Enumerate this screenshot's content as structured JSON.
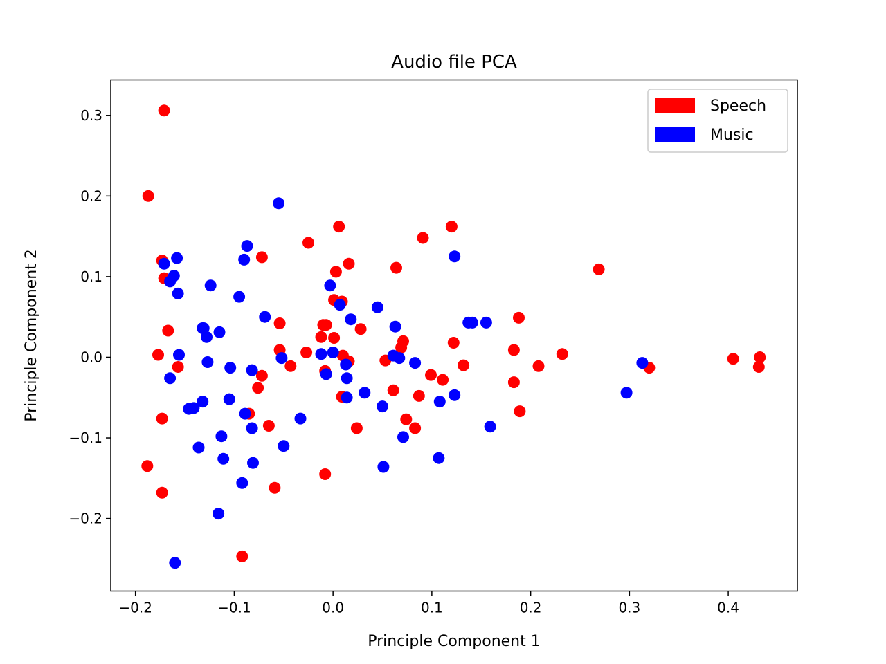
{
  "chart_data": {
    "type": "scatter",
    "title": "Audio file PCA",
    "xlabel": "Principle Component 1",
    "ylabel": "Principle Component 2",
    "xlim": [
      -0.225,
      0.47
    ],
    "ylim": [
      -0.29,
      0.344
    ],
    "xticks": [
      -0.2,
      -0.1,
      0.0,
      0.1,
      0.2,
      0.3,
      0.4
    ],
    "xtick_labels": [
      "−0.2",
      "−0.1",
      "0.0",
      "0.1",
      "0.2",
      "0.3",
      "0.4"
    ],
    "yticks": [
      -0.2,
      -0.1,
      0.0,
      0.1,
      0.2,
      0.3
    ],
    "ytick_labels": [
      "−0.2",
      "−0.1",
      "0.0",
      "0.1",
      "0.2",
      "0.3"
    ],
    "grid": false,
    "legend_position": "top-right",
    "series": [
      {
        "name": "Speech",
        "color": "#ff0000",
        "points": [
          [
            -0.171,
            0.306
          ],
          [
            -0.187,
            0.2
          ],
          [
            -0.173,
            0.12
          ],
          [
            -0.171,
            0.098
          ],
          [
            -0.167,
            0.033
          ],
          [
            -0.177,
            0.003
          ],
          [
            -0.157,
            -0.012
          ],
          [
            -0.173,
            -0.076
          ],
          [
            -0.188,
            -0.135
          ],
          [
            -0.173,
            -0.168
          ],
          [
            -0.072,
            0.124
          ],
          [
            -0.054,
            0.042
          ],
          [
            -0.054,
            0.009
          ],
          [
            -0.043,
            -0.011
          ],
          [
            -0.072,
            -0.023
          ],
          [
            -0.076,
            -0.038
          ],
          [
            -0.065,
            -0.085
          ],
          [
            -0.085,
            -0.07
          ],
          [
            -0.059,
            -0.162
          ],
          [
            -0.092,
            -0.247
          ],
          [
            -0.025,
            0.142
          ],
          [
            0.006,
            0.162
          ],
          [
            0.003,
            0.106
          ],
          [
            0.016,
            0.116
          ],
          [
            0.001,
            0.071
          ],
          [
            0.009,
            0.069
          ],
          [
            -0.01,
            0.04
          ],
          [
            -0.007,
            0.04
          ],
          [
            -0.012,
            0.025
          ],
          [
            0.001,
            0.024
          ],
          [
            0.028,
            0.035
          ],
          [
            -0.027,
            0.006
          ],
          [
            0.01,
            0.002
          ],
          [
            0.016,
            -0.005
          ],
          [
            -0.008,
            -0.017
          ],
          [
            0.009,
            -0.049
          ],
          [
            0.024,
            -0.088
          ],
          [
            -0.008,
            -0.145
          ],
          [
            0.091,
            0.148
          ],
          [
            0.064,
            0.111
          ],
          [
            0.12,
            0.162
          ],
          [
            0.071,
            0.02
          ],
          [
            0.069,
            0.012
          ],
          [
            0.053,
            -0.004
          ],
          [
            0.061,
            -0.041
          ],
          [
            0.087,
            -0.048
          ],
          [
            0.074,
            -0.077
          ],
          [
            0.083,
            -0.088
          ],
          [
            0.099,
            -0.022
          ],
          [
            0.111,
            -0.028
          ],
          [
            0.132,
            -0.01
          ],
          [
            0.122,
            0.018
          ],
          [
            0.188,
            0.049
          ],
          [
            0.183,
            0.009
          ],
          [
            0.232,
            0.004
          ],
          [
            0.208,
            -0.011
          ],
          [
            0.183,
            -0.031
          ],
          [
            0.189,
            -0.067
          ],
          [
            0.269,
            0.109
          ],
          [
            0.32,
            -0.013
          ],
          [
            0.405,
            -0.002
          ],
          [
            0.432,
            0.0
          ],
          [
            0.431,
            -0.012
          ]
        ]
      },
      {
        "name": "Music",
        "color": "#0000ff",
        "points": [
          [
            -0.171,
            0.116
          ],
          [
            -0.158,
            0.123
          ],
          [
            -0.161,
            0.101
          ],
          [
            -0.165,
            0.094
          ],
          [
            -0.157,
            0.079
          ],
          [
            -0.156,
            0.003
          ],
          [
            -0.165,
            -0.026
          ],
          [
            -0.16,
            -0.255
          ],
          [
            -0.124,
            0.089
          ],
          [
            -0.132,
            0.036
          ],
          [
            -0.131,
            0.036
          ],
          [
            -0.128,
            0.025
          ],
          [
            -0.115,
            0.031
          ],
          [
            -0.127,
            -0.006
          ],
          [
            -0.132,
            -0.055
          ],
          [
            -0.146,
            -0.064
          ],
          [
            -0.141,
            -0.063
          ],
          [
            -0.136,
            -0.112
          ],
          [
            -0.113,
            -0.098
          ],
          [
            -0.111,
            -0.126
          ],
          [
            -0.116,
            -0.194
          ],
          [
            -0.104,
            -0.013
          ],
          [
            -0.105,
            -0.052
          ],
          [
            -0.095,
            0.075
          ],
          [
            -0.087,
            0.138
          ],
          [
            -0.09,
            0.121
          ],
          [
            -0.069,
            0.05
          ],
          [
            -0.082,
            -0.016
          ],
          [
            -0.089,
            -0.07
          ],
          [
            -0.082,
            -0.088
          ],
          [
            -0.081,
            -0.131
          ],
          [
            -0.092,
            -0.156
          ],
          [
            -0.055,
            0.191
          ],
          [
            -0.052,
            -0.001
          ],
          [
            -0.05,
            -0.11
          ],
          [
            -0.033,
            -0.076
          ],
          [
            -0.003,
            0.089
          ],
          [
            0.007,
            0.065
          ],
          [
            0.018,
            0.047
          ],
          [
            -0.012,
            0.004
          ],
          [
            0.0,
            0.006
          ],
          [
            -0.007,
            -0.021
          ],
          [
            0.013,
            -0.009
          ],
          [
            0.014,
            -0.026
          ],
          [
            0.014,
            -0.05
          ],
          [
            0.032,
            -0.044
          ],
          [
            0.045,
            0.062
          ],
          [
            0.063,
            0.038
          ],
          [
            0.061,
            0.002
          ],
          [
            0.067,
            -0.001
          ],
          [
            0.083,
            -0.007
          ],
          [
            0.05,
            -0.061
          ],
          [
            0.051,
            -0.136
          ],
          [
            0.071,
            -0.099
          ],
          [
            0.123,
            0.125
          ],
          [
            0.137,
            0.043
          ],
          [
            0.141,
            0.043
          ],
          [
            0.155,
            0.043
          ],
          [
            0.108,
            -0.055
          ],
          [
            0.123,
            -0.047
          ],
          [
            0.107,
            -0.125
          ],
          [
            0.159,
            -0.086
          ],
          [
            0.313,
            -0.007
          ],
          [
            0.297,
            -0.044
          ]
        ]
      }
    ]
  }
}
